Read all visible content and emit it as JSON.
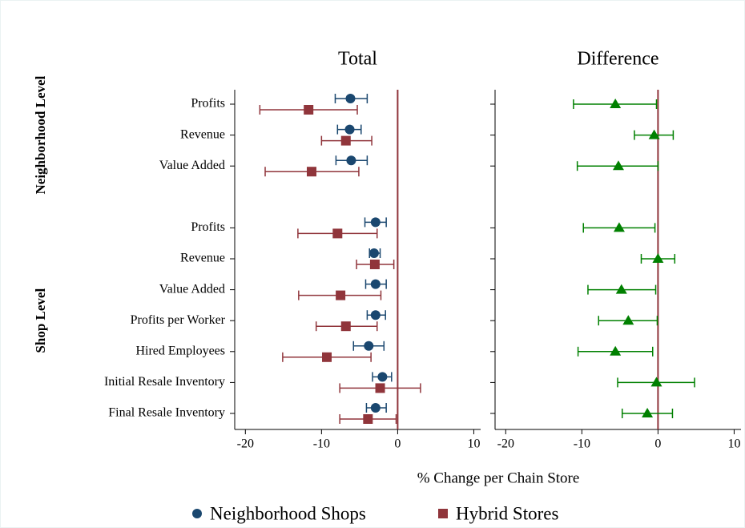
{
  "chart_data": {
    "type": "coefplot",
    "xlabel": "% Change per Chain Store",
    "legend": "bottom",
    "groups": [
      {
        "name": "Neighborhood Level",
        "categories": [
          "Profits",
          "Revenue",
          "Value Added"
        ]
      },
      {
        "name": "Shop Level",
        "categories": [
          "Profits",
          "Revenue",
          "Value Added",
          "Profits per Worker",
          "Hired Employees",
          "Initial Resale Inventory",
          "Final Resale Inventory"
        ]
      }
    ],
    "panels": [
      {
        "title": "Total",
        "xlim": [
          -21.4,
          10.9
        ],
        "xticks": [
          -20,
          -10,
          0,
          10
        ],
        "refline": 0,
        "series": [
          {
            "name": "Neighborhood Shops",
            "color": "#1a476f",
            "marker": "circle",
            "values": [
              -6.2,
              -6.3,
              -6.1,
              -2.9,
              -3.1,
              -2.9,
              -2.9,
              -3.8,
              -2.0,
              -2.9
            ],
            "lower": [
              -8.2,
              -7.9,
              -8.1,
              -4.3,
              -3.7,
              -4.2,
              -4.0,
              -5.8,
              -3.3,
              -4.1
            ],
            "upper": [
              -4.0,
              -4.8,
              -4.0,
              -1.5,
              -2.3,
              -1.5,
              -1.6,
              -1.8,
              -0.8,
              -1.5
            ]
          },
          {
            "name": "Hybrid Stores",
            "color": "#90353b",
            "marker": "square",
            "values": [
              -11.7,
              -6.8,
              -11.3,
              -7.9,
              -3.0,
              -7.5,
              -6.8,
              -9.3,
              -2.3,
              -3.9
            ],
            "lower": [
              -18.1,
              -10.0,
              -17.4,
              -13.1,
              -5.4,
              -13.0,
              -10.7,
              -15.1,
              -7.6,
              -7.6
            ],
            "upper": [
              -5.3,
              -3.4,
              -5.1,
              -2.7,
              -0.5,
              -2.2,
              -2.7,
              -3.5,
              3.0,
              -0.2
            ]
          }
        ]
      },
      {
        "title": "Difference",
        "xlim": [
          -21.4,
          10.9
        ],
        "xticks": [
          -20,
          -10,
          0,
          10
        ],
        "refline": 0,
        "series": [
          {
            "color": "#008000",
            "marker": "triangle",
            "values": [
              -5.6,
              -0.5,
              -5.2,
              -5.1,
              0.0,
              -4.8,
              -3.9,
              -5.6,
              -0.2,
              -1.4
            ],
            "lower": [
              -11.1,
              -3.1,
              -10.6,
              -9.8,
              -2.2,
              -9.2,
              -7.8,
              -10.5,
              -5.3,
              -4.7
            ],
            "upper": [
              -0.2,
              2.0,
              0.0,
              -0.4,
              2.2,
              -0.3,
              -0.1,
              -0.7,
              4.8,
              1.9
            ]
          }
        ]
      }
    ]
  }
}
